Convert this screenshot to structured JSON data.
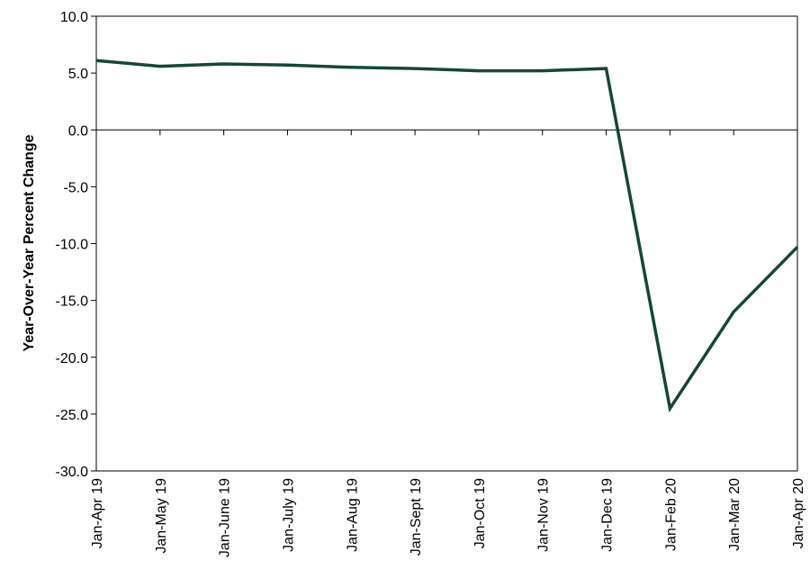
{
  "chart_data": {
    "type": "line",
    "title": "",
    "xlabel": "",
    "ylabel": "Year-Over-Year Percent Change",
    "categories": [
      "Jan-Apr 19",
      "Jan-May 19",
      "Jan-June 19",
      "Jan-July 19",
      "Jan-Aug 19",
      "Jan-Sept 19",
      "Jan-Oct 19",
      "Jan-Nov 19",
      "Jan-Dec 19",
      "Jan-Feb 20",
      "Jan-Mar 20",
      "Jan-Apr 20"
    ],
    "series": [
      {
        "values": [
          6.1,
          5.6,
          5.8,
          5.7,
          5.5,
          5.4,
          5.2,
          5.2,
          5.4,
          -24.5,
          -16.0,
          -10.3
        ]
      }
    ],
    "ylim": [
      -30,
      10
    ],
    "yticks": [
      10,
      5,
      0,
      -5,
      -10,
      -15,
      -20,
      -25,
      -30
    ],
    "ytick_labels": [
      "10.0",
      "5.0",
      "0.0",
      "-5.0",
      "-10.0",
      "-15.0",
      "-20.0",
      "-25.0",
      "-30.0"
    ],
    "grid": false,
    "legend": "none",
    "line_color": "#154734"
  }
}
